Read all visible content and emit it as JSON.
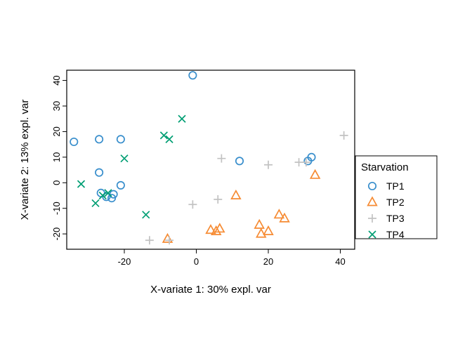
{
  "chart_data": {
    "type": "scatter",
    "title": "",
    "xlabel": "X-variate 1: 30% expl. var",
    "ylabel": "X-variate 2: 13% expl. var",
    "xlim": [
      -36,
      44
    ],
    "ylim": [
      -26,
      44
    ],
    "xticks": [
      -20,
      0,
      20,
      40
    ],
    "yticks": [
      -20,
      -10,
      0,
      10,
      20,
      30,
      40
    ],
    "grid": false,
    "legend_title": "Starvation",
    "legend_position": "right",
    "axis_color": "#000000",
    "series": [
      {
        "name": "TP1",
        "symbol": "circle",
        "color": "#388ECC",
        "points": [
          [
            -34,
            16
          ],
          [
            -27,
            17
          ],
          [
            -21,
            17
          ],
          [
            -27,
            4
          ],
          [
            -26.5,
            -4
          ],
          [
            -25,
            -5.5
          ],
          [
            -23.5,
            -6
          ],
          [
            -23,
            -4.5
          ],
          [
            -21,
            -1
          ],
          [
            -1,
            42
          ],
          [
            12,
            8.5
          ],
          [
            31,
            8.5
          ],
          [
            32,
            10
          ]
        ]
      },
      {
        "name": "TP2",
        "symbol": "triangle",
        "color": "#F68B33",
        "points": [
          [
            -8,
            -22
          ],
          [
            4,
            -18.5
          ],
          [
            5.5,
            -19
          ],
          [
            6.5,
            -18
          ],
          [
            11,
            -5
          ],
          [
            17.5,
            -16.5
          ],
          [
            18,
            -20
          ],
          [
            20,
            -19
          ],
          [
            23,
            -12.5
          ],
          [
            24.5,
            -14
          ],
          [
            33,
            3
          ]
        ]
      },
      {
        "name": "TP3",
        "symbol": "plus",
        "color": "#C2C2C2",
        "points": [
          [
            -13,
            -22.5
          ],
          [
            -7.5,
            -22.5
          ],
          [
            -1,
            -8.5
          ],
          [
            6,
            -6.5
          ],
          [
            7,
            9.5
          ],
          [
            20,
            7
          ],
          [
            28.5,
            8
          ],
          [
            30.5,
            8
          ],
          [
            41,
            18.5
          ]
        ]
      },
      {
        "name": "TP4",
        "symbol": "x",
        "color": "#009E73",
        "points": [
          [
            -32,
            -0.5
          ],
          [
            -28,
            -8
          ],
          [
            -26,
            -5
          ],
          [
            -24.5,
            -4
          ],
          [
            -20,
            9.5
          ],
          [
            -14,
            -12.5
          ],
          [
            -9,
            18.5
          ],
          [
            -7.5,
            17
          ],
          [
            -4,
            25
          ]
        ]
      }
    ]
  }
}
